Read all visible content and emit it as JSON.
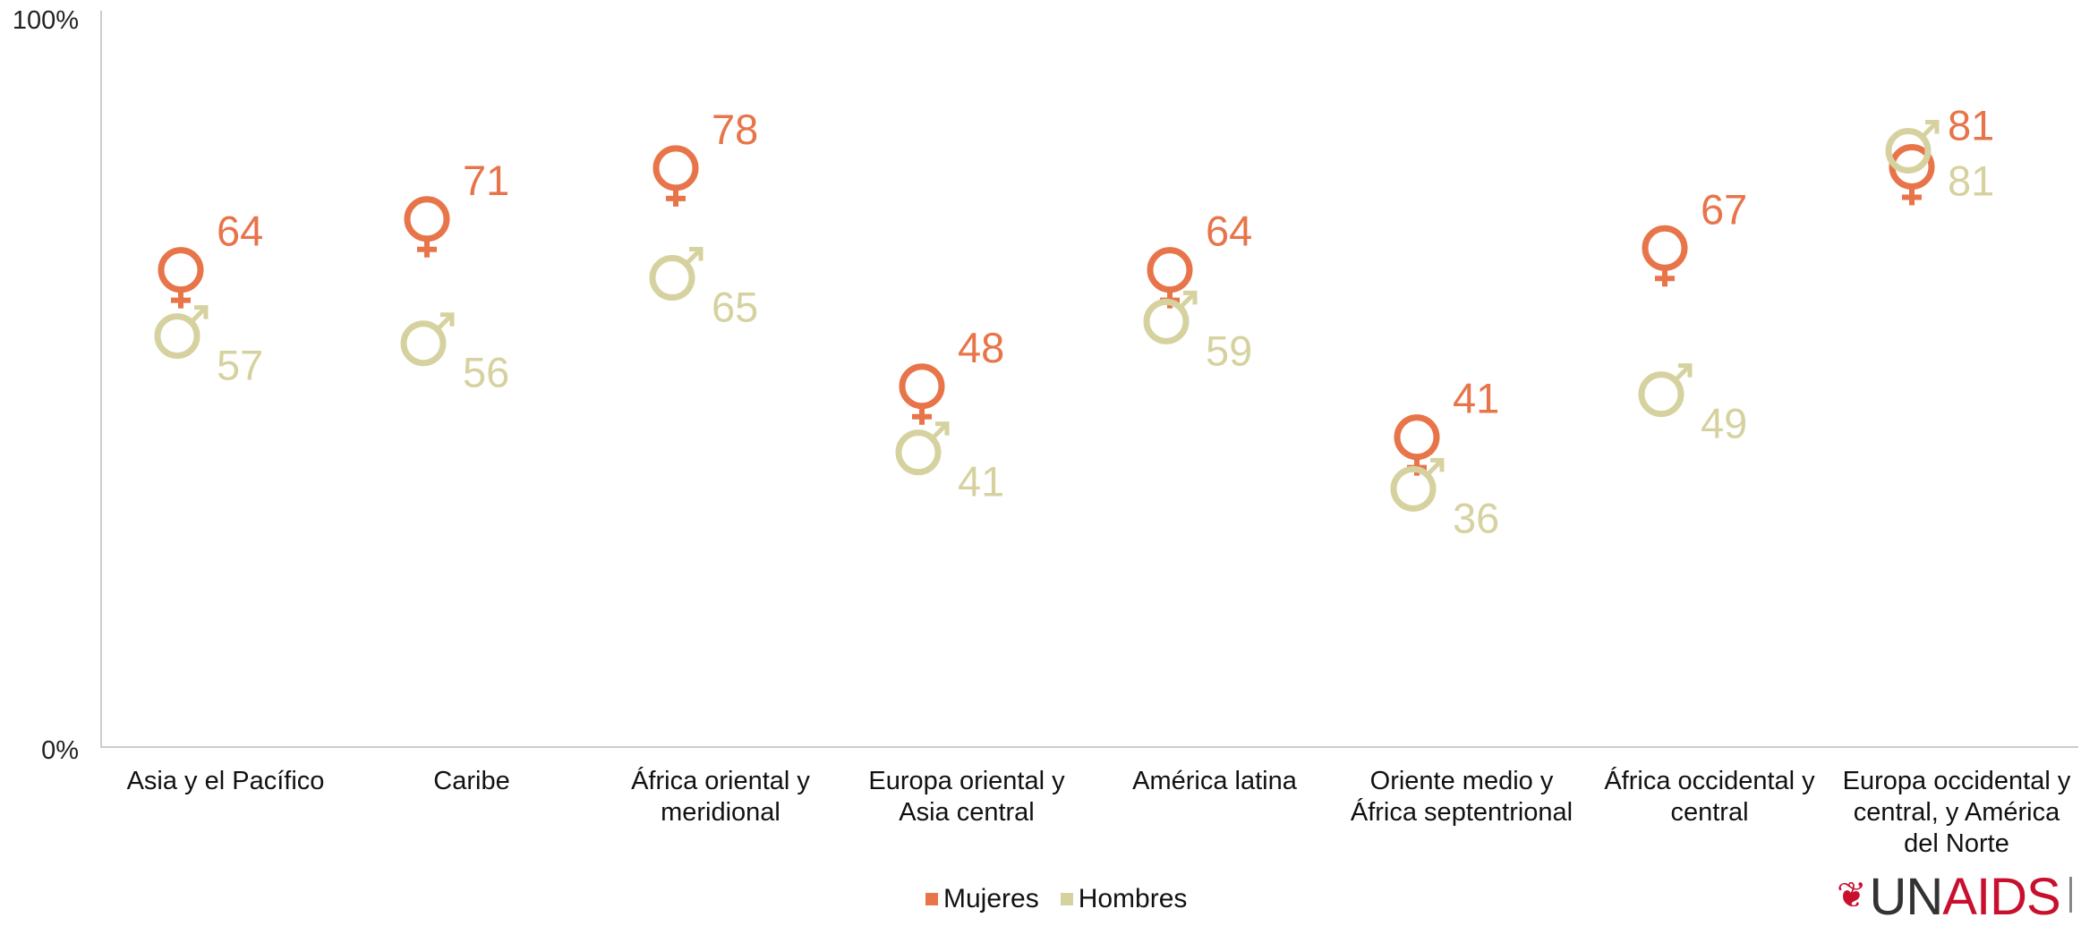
{
  "chart_data": {
    "type": "scatter",
    "ylim": [
      0,
      100
    ],
    "yticks": [
      "0%",
      "100%"
    ],
    "categories": [
      [
        "Asia y el Pacífico"
      ],
      [
        "Caribe"
      ],
      [
        "África oriental y",
        "meridional"
      ],
      [
        "Europa oriental y",
        "Asia central"
      ],
      [
        "América latina"
      ],
      [
        "Oriente medio y",
        "África septentrional"
      ],
      [
        "África occidental y",
        "central"
      ],
      [
        "Europa occidental y",
        "central, y América",
        "del Norte"
      ]
    ],
    "series": [
      {
        "name": "Mujeres",
        "symbol": "female",
        "color": "#E8744A",
        "values": [
          64,
          71,
          78,
          48,
          64,
          41,
          67,
          81
        ]
      },
      {
        "name": "Hombres",
        "symbol": "male",
        "color": "#D6D2A0",
        "values": [
          57,
          56,
          65,
          41,
          59,
          36,
          49,
          81
        ]
      }
    ],
    "legend_position": "bottom-center"
  },
  "logo": {
    "text_un": "UN",
    "text_aids": "AIDS"
  }
}
